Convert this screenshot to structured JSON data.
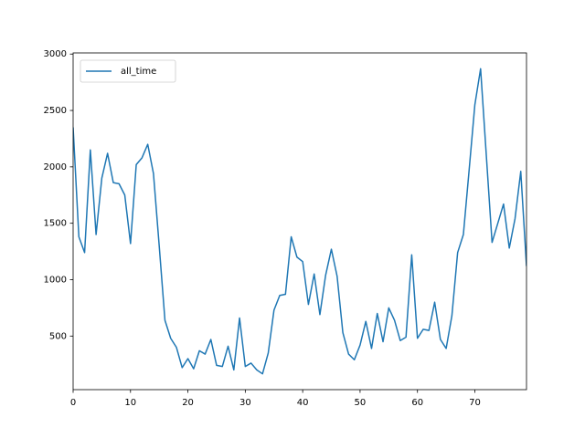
{
  "chart_data": {
    "type": "line",
    "x": [
      0,
      1,
      2,
      3,
      4,
      5,
      6,
      7,
      8,
      9,
      10,
      11,
      12,
      13,
      14,
      15,
      16,
      17,
      18,
      19,
      20,
      21,
      22,
      23,
      24,
      25,
      26,
      27,
      28,
      29,
      30,
      31,
      32,
      33,
      34,
      35,
      36,
      37,
      38,
      39,
      40,
      41,
      42,
      43,
      44,
      45,
      46,
      47,
      48,
      49,
      50,
      51,
      52,
      53,
      54,
      55,
      56,
      57,
      58,
      59,
      60,
      61,
      62,
      63,
      64,
      65,
      66,
      67,
      68,
      69,
      70,
      71,
      72,
      73,
      74,
      75,
      76,
      77,
      78,
      79
    ],
    "series": [
      {
        "name": "all_time",
        "color": "#1f77b4",
        "values": [
          2350,
          1380,
          1240,
          2150,
          1400,
          1900,
          2120,
          1860,
          1850,
          1750,
          1320,
          2020,
          2080,
          2200,
          1940,
          1300,
          640,
          480,
          400,
          220,
          300,
          210,
          370,
          340,
          470,
          240,
          230,
          410,
          200,
          660,
          230,
          260,
          200,
          165,
          350,
          730,
          860,
          870,
          1380,
          1200,
          1160,
          780,
          1050,
          690,
          1040,
          1270,
          1030,
          530,
          340,
          290,
          420,
          630,
          390,
          700,
          450,
          750,
          640,
          460,
          490,
          1220,
          480,
          560,
          550,
          800,
          470,
          390,
          680,
          1240,
          1400,
          1970,
          2550,
          2870,
          2100,
          1330,
          1500,
          1670,
          1280,
          1540,
          1960,
          1120
        ]
      }
    ],
    "xlim": [
      0,
      79
    ],
    "xticks": [
      0,
      10,
      20,
      30,
      40,
      50,
      60,
      70
    ],
    "ylim": [
      25,
      3010
    ],
    "yticks": [
      500,
      1000,
      1500,
      2000,
      2500,
      3000
    ],
    "legend": "upper left"
  }
}
